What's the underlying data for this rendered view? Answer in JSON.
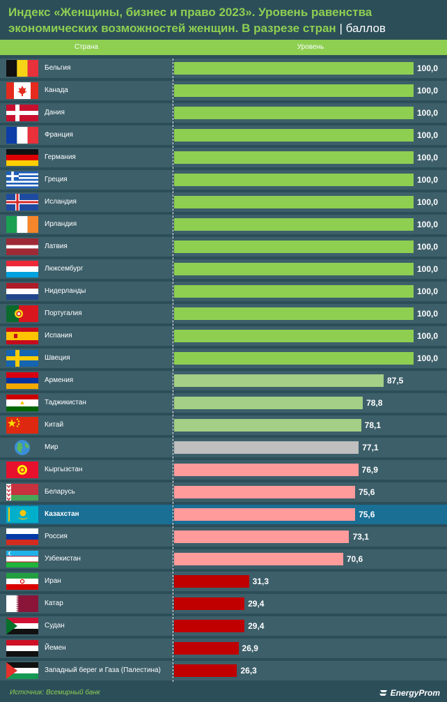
{
  "title": {
    "main": "Индекс «Женщины, бизнес и право 2023». Уровень равенства экономических возможностей женщин. В разрезе стран",
    "separator": "|",
    "unit": "баллов"
  },
  "header": {
    "col_country": "Страна",
    "col_level": "Уровень"
  },
  "source": "Источник: Всемирный банк",
  "logo": "EnergyProm",
  "colors": {
    "green": "#8ecf52",
    "light_green": "#a4cf86",
    "gray": "#bfbfbf",
    "pink": "#ff9b9b",
    "red": "#c00000",
    "highlight_row": "#1a6f95",
    "row": "#3d5f6a",
    "background": "#2c4e59"
  },
  "chart_data": {
    "type": "bar",
    "orientation": "horizontal",
    "title": "Индекс «Женщины, бизнес и право 2023». Уровень равенства экономических возможностей женщин. В разрезе стран",
    "xlabel": "Уровень",
    "ylabel": "Страна",
    "xlim": [
      0,
      100
    ],
    "grid": false,
    "highlight": "Казахстан",
    "categories": [
      "Бельгия",
      "Канада",
      "Дания",
      "Франция",
      "Германия",
      "Греция",
      "Исландия",
      "Ирландия",
      "Латвия",
      "Люксембург",
      "Нидерланды",
      "Португалия",
      "Испания",
      "Швеция",
      "Армения",
      "Таджикистан",
      "Китай",
      "Мир",
      "Кыргызстан",
      "Беларусь",
      "Казахстан",
      "Россия",
      "Узбекистан",
      "Иран",
      "Катар",
      "Судан",
      "Йемен",
      "Западный берег и Газа (Палестина)"
    ],
    "values": [
      100.0,
      100.0,
      100.0,
      100.0,
      100.0,
      100.0,
      100.0,
      100.0,
      100.0,
      100.0,
      100.0,
      100.0,
      100.0,
      100.0,
      87.5,
      78.8,
      78.1,
      77.1,
      76.9,
      75.6,
      75.6,
      73.1,
      70.6,
      31.3,
      29.4,
      29.4,
      26.9,
      26.3
    ],
    "labels": [
      "100,0",
      "100,0",
      "100,0",
      "100,0",
      "100,0",
      "100,0",
      "100,0",
      "100,0",
      "100,0",
      "100,0",
      "100,0",
      "100,0",
      "100,0",
      "100,0",
      "87,5",
      "78,8",
      "78,1",
      "77,1",
      "76,9",
      "75,6",
      "75,6",
      "73,1",
      "70,6",
      "31,3",
      "29,4",
      "29,4",
      "26,9",
      "26,3"
    ],
    "bar_colors": [
      "#8ecf52",
      "#8ecf52",
      "#8ecf52",
      "#8ecf52",
      "#8ecf52",
      "#8ecf52",
      "#8ecf52",
      "#8ecf52",
      "#8ecf52",
      "#8ecf52",
      "#8ecf52",
      "#8ecf52",
      "#8ecf52",
      "#8ecf52",
      "#a4cf86",
      "#a4cf86",
      "#a4cf86",
      "#bfbfbf",
      "#ff9b9b",
      "#ff9b9b",
      "#ff9b9b",
      "#ff9b9b",
      "#ff9b9b",
      "#c00000",
      "#c00000",
      "#c00000",
      "#c00000",
      "#c00000"
    ],
    "flags": [
      "belgium-flag-icon",
      "canada-flag-icon",
      "denmark-flag-icon",
      "france-flag-icon",
      "germany-flag-icon",
      "greece-flag-icon",
      "iceland-flag-icon",
      "ireland-flag-icon",
      "latvia-flag-icon",
      "luxembourg-flag-icon",
      "netherlands-flag-icon",
      "portugal-flag-icon",
      "spain-flag-icon",
      "sweden-flag-icon",
      "armenia-flag-icon",
      "tajikistan-flag-icon",
      "china-flag-icon",
      "globe-icon",
      "kyrgyzstan-flag-icon",
      "belarus-flag-icon",
      "kazakhstan-flag-icon",
      "russia-flag-icon",
      "uzbekistan-flag-icon",
      "iran-flag-icon",
      "qatar-flag-icon",
      "sudan-flag-icon",
      "yemen-flag-icon",
      "palestine-flag-icon"
    ]
  }
}
